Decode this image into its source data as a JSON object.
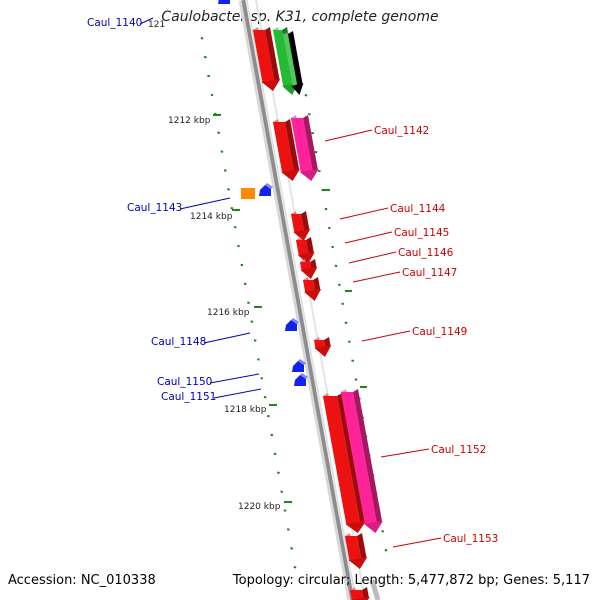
{
  "title": "Caulobacter sp. K31, complete genome",
  "footer": {
    "accession": "Accession: NC_010338",
    "stats": "Topology: circular; Length: 5,477,872 bp; Genes: 5,117"
  },
  "colors": {
    "backbone": "#8c8c8c",
    "tick": "#1a8a1a",
    "minus_label": "#0000bb",
    "plus_label": "#cc0000",
    "cds_red": "#ee1111",
    "cds_pink": "#ff2299",
    "cds_green": "#22bb33",
    "cds_blue": "#1122ee",
    "cds_orange": "#ff8800"
  },
  "scale_labels": [
    "121",
    "1212 kbp",
    "1214 kbp",
    "1216 kbp",
    "1218 kbp",
    "1220 kbp"
  ],
  "gene_labels": [
    {
      "name": "Caul_1140",
      "strand": "minus"
    },
    {
      "name": "Caul_1142",
      "strand": "plus"
    },
    {
      "name": "Caul_1143",
      "strand": "minus"
    },
    {
      "name": "Caul_1144",
      "strand": "plus"
    },
    {
      "name": "Caul_1145",
      "strand": "plus"
    },
    {
      "name": "Caul_1146",
      "strand": "plus"
    },
    {
      "name": "Caul_1147",
      "strand": "plus"
    },
    {
      "name": "Caul_1148",
      "strand": "minus"
    },
    {
      "name": "Caul_1149",
      "strand": "plus"
    },
    {
      "name": "Caul_1150",
      "strand": "minus"
    },
    {
      "name": "Caul_1151",
      "strand": "minus"
    },
    {
      "name": "Caul_1152",
      "strand": "plus"
    },
    {
      "name": "Caul_1153",
      "strand": "plus"
    }
  ]
}
